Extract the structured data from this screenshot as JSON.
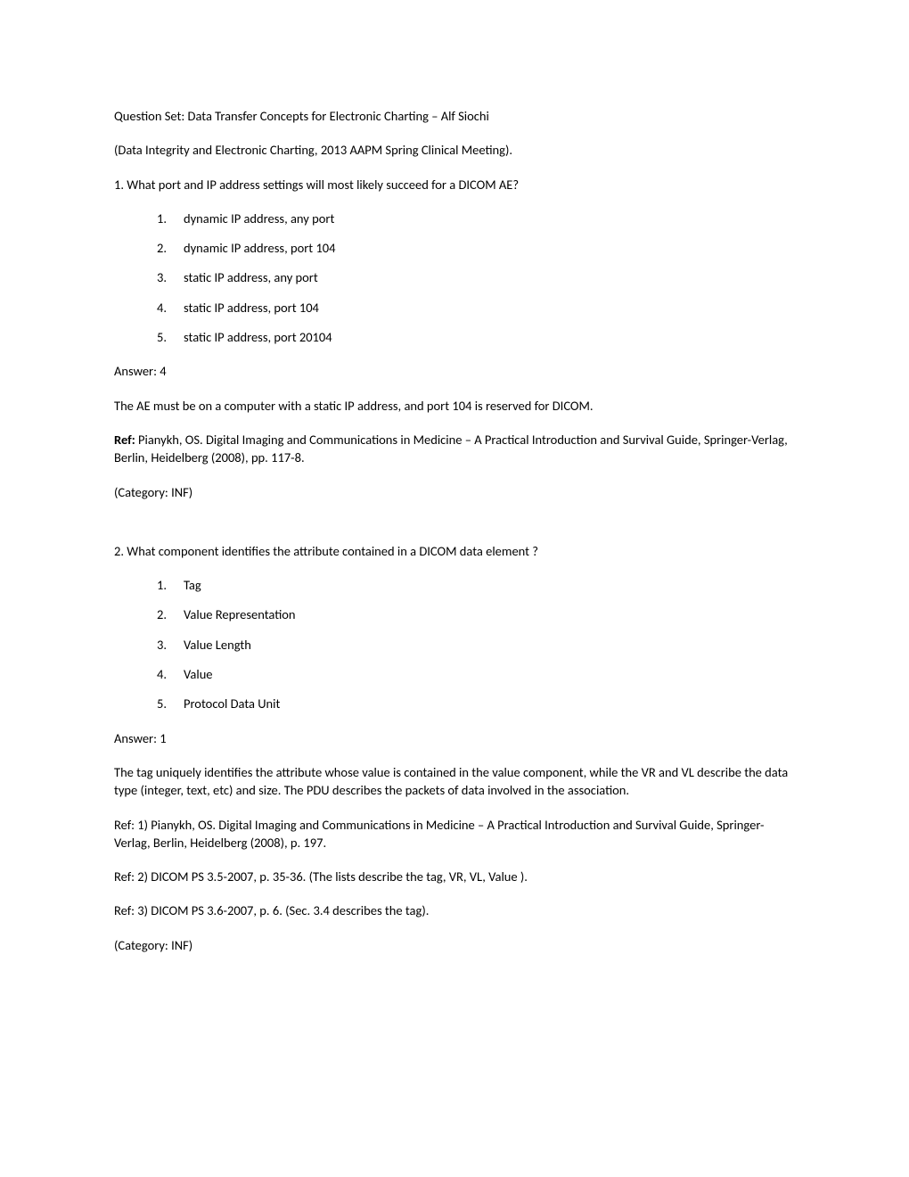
{
  "header": {
    "title_line": "Question Set: Data Transfer Concepts for Electronic Charting – Alf Siochi",
    "subtitle_line": "(Data Integrity and Electronic Charting, 2013 AAPM Spring Clinical Meeting)."
  },
  "q1": {
    "question": "1. What port and IP address settings will most likely succeed for a DICOM AE?",
    "options": [
      {
        "n": "1.",
        "t": "dynamic IP address, any port"
      },
      {
        "n": "2.",
        "t": "dynamic IP address, port 104"
      },
      {
        "n": "3.",
        "t": "static IP address, any port"
      },
      {
        "n": "4.",
        "t": "static IP address, port 104"
      },
      {
        "n": "5.",
        "t": "static IP address, port 20104"
      }
    ],
    "answer": "Answer: 4",
    "explanation": "The AE must be on a computer with a static IP address, and port 104 is reserved for DICOM.",
    "ref_label": "Ref:  ",
    "ref_text": "Pianykh, OS. Digital Imaging and Communications in Medicine – A Practical Introduction and Survival Guide, Springer-Verlag, Berlin, Heidelberg (2008), pp. 117-8.",
    "category": "(Category: INF)"
  },
  "q2": {
    "question": "2. What component identifies the attribute contained in a DICOM data element ?",
    "options": [
      {
        "n": "1.",
        "t": "Tag"
      },
      {
        "n": "2.",
        "t": "Value Representation"
      },
      {
        "n": "3.",
        "t": "Value Length"
      },
      {
        "n": "4.",
        "t": "Value"
      },
      {
        "n": "5.",
        "t": "Protocol Data Unit"
      }
    ],
    "answer": "Answer: 1",
    "explanation": "The tag uniquely identifies the attribute whose value is contained in the value component, while the VR and VL describe the data type (integer, text, etc) and size. The PDU describes the packets of data involved in the association.",
    "ref1": "Ref: 1) Pianykh, OS. Digital Imaging and Communications in Medicine – A Practical Introduction and Survival Guide, Springer-Verlag, Berlin, Heidelberg (2008), p. 197.",
    "ref2": "Ref: 2) DICOM PS 3.5-2007, p. 35-36. (The lists describe the tag, VR, VL, Value ).",
    "ref3": "Ref: 3) DICOM PS 3.6-2007, p. 6. (Sec. 3.4 describes the tag).",
    "category": "(Category: INF)"
  }
}
